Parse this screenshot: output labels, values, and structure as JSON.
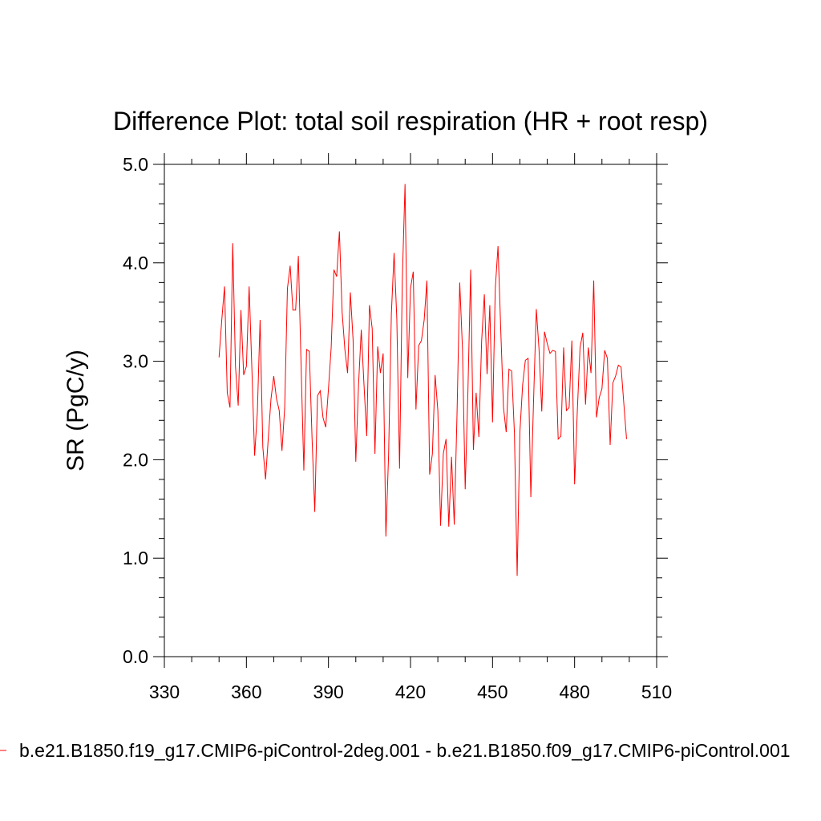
{
  "chart_data": {
    "type": "line",
    "title": "Difference Plot: total soil respiration (HR + root resp)",
    "xlabel": "",
    "ylabel": "SR  (PgC/y)",
    "xlim": [
      330,
      510
    ],
    "ylim": [
      0.0,
      5.0
    ],
    "xticks": [
      330,
      360,
      390,
      420,
      450,
      480,
      510
    ],
    "yticks": [
      0.0,
      1.0,
      2.0,
      3.0,
      4.0,
      5.0
    ],
    "xtick_labels": [
      "330",
      "360",
      "390",
      "420",
      "450",
      "480",
      "510"
    ],
    "ytick_labels": [
      "0.0",
      "1.0",
      "2.0",
      "3.0",
      "4.0",
      "5.0"
    ],
    "grid": false,
    "legend_position": "bottom",
    "series": [
      {
        "name": "b.e21.B1850.f19_g17.CMIP6-piControl-2deg.001 - b.e21.B1850.f09_g17.CMIP6-piControl.001",
        "color": "#ff0000",
        "x_start": 350,
        "values": [
          3.04,
          3.42,
          3.76,
          2.68,
          2.53,
          4.2,
          2.95,
          2.55,
          3.52,
          2.86,
          2.95,
          3.76,
          2.92,
          2.04,
          2.48,
          3.42,
          2.13,
          1.8,
          2.22,
          2.62,
          2.85,
          2.62,
          2.5,
          2.09,
          2.53,
          3.74,
          3.97,
          3.52,
          3.52,
          4.07,
          2.95,
          1.89,
          3.12,
          3.1,
          2.22,
          1.47,
          2.65,
          2.7,
          2.43,
          2.33,
          2.72,
          3.14,
          3.93,
          3.86,
          4.32,
          3.5,
          3.12,
          2.88,
          3.7,
          3.22,
          1.98,
          2.76,
          3.32,
          2.76,
          2.24,
          3.57,
          3.33,
          2.06,
          3.15,
          2.88,
          3.08,
          1.22,
          2.06,
          3.48,
          4.1,
          3.43,
          1.91,
          3.82,
          4.8,
          2.83,
          3.74,
          3.91,
          2.51,
          3.16,
          3.21,
          3.42,
          3.82,
          1.85,
          2.06,
          2.86,
          2.5,
          1.33,
          2.06,
          2.21,
          1.32,
          2.03,
          1.34,
          2.45,
          3.8,
          3.13,
          1.7,
          2.7,
          3.93,
          2.1,
          2.68,
          2.23,
          3.2,
          3.68,
          2.87,
          3.57,
          2.38,
          3.74,
          4.17,
          3.32,
          2.53,
          2.28,
          2.92,
          2.9,
          2.27,
          0.82,
          2.28,
          2.76,
          3.01,
          3.03,
          1.62,
          2.6,
          3.53,
          3.12,
          2.49,
          3.3,
          3.18,
          3.08,
          3.11,
          3.1,
          2.21,
          2.24,
          3.14,
          2.5,
          2.53,
          3.21,
          1.75,
          2.5,
          3.14,
          3.29,
          2.56,
          3.14,
          2.88,
          3.82,
          2.43,
          2.63,
          2.72,
          3.11,
          3.03,
          2.15,
          2.78,
          2.85,
          2.96,
          2.94,
          2.57,
          2.21
        ]
      }
    ]
  }
}
